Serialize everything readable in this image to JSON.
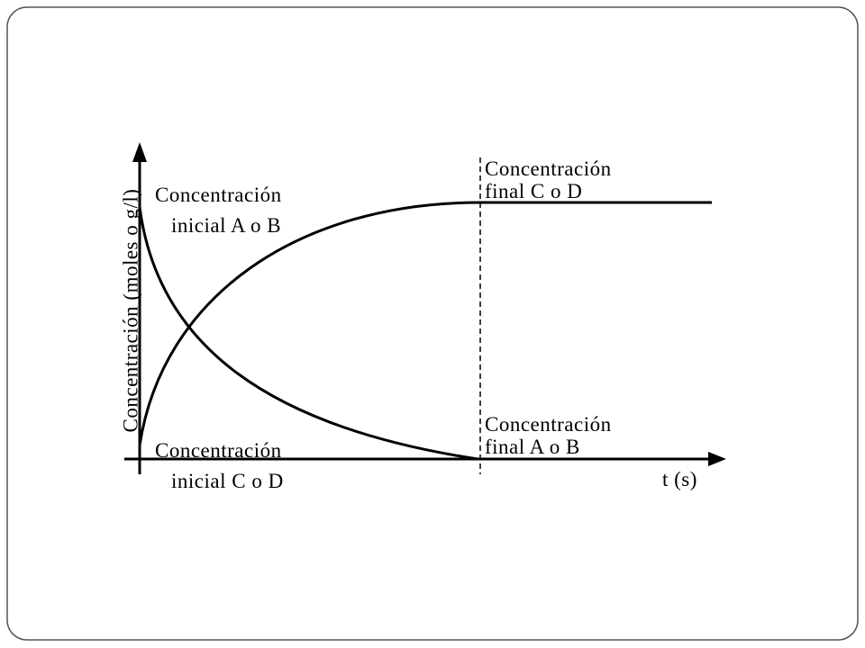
{
  "diagram": {
    "y_axis_label": "Concentración (moles o g/l)",
    "x_axis_label": "t (s)",
    "annotations": [
      {
        "lines": [
          "Concentración",
          "inicial A o B"
        ]
      },
      {
        "lines": [
          "Concentración",
          "final C o D"
        ]
      },
      {
        "lines": [
          "Concentración",
          "final A o B"
        ]
      },
      {
        "lines": [
          "Concentración",
          "inicial C o D"
        ]
      }
    ]
  }
}
